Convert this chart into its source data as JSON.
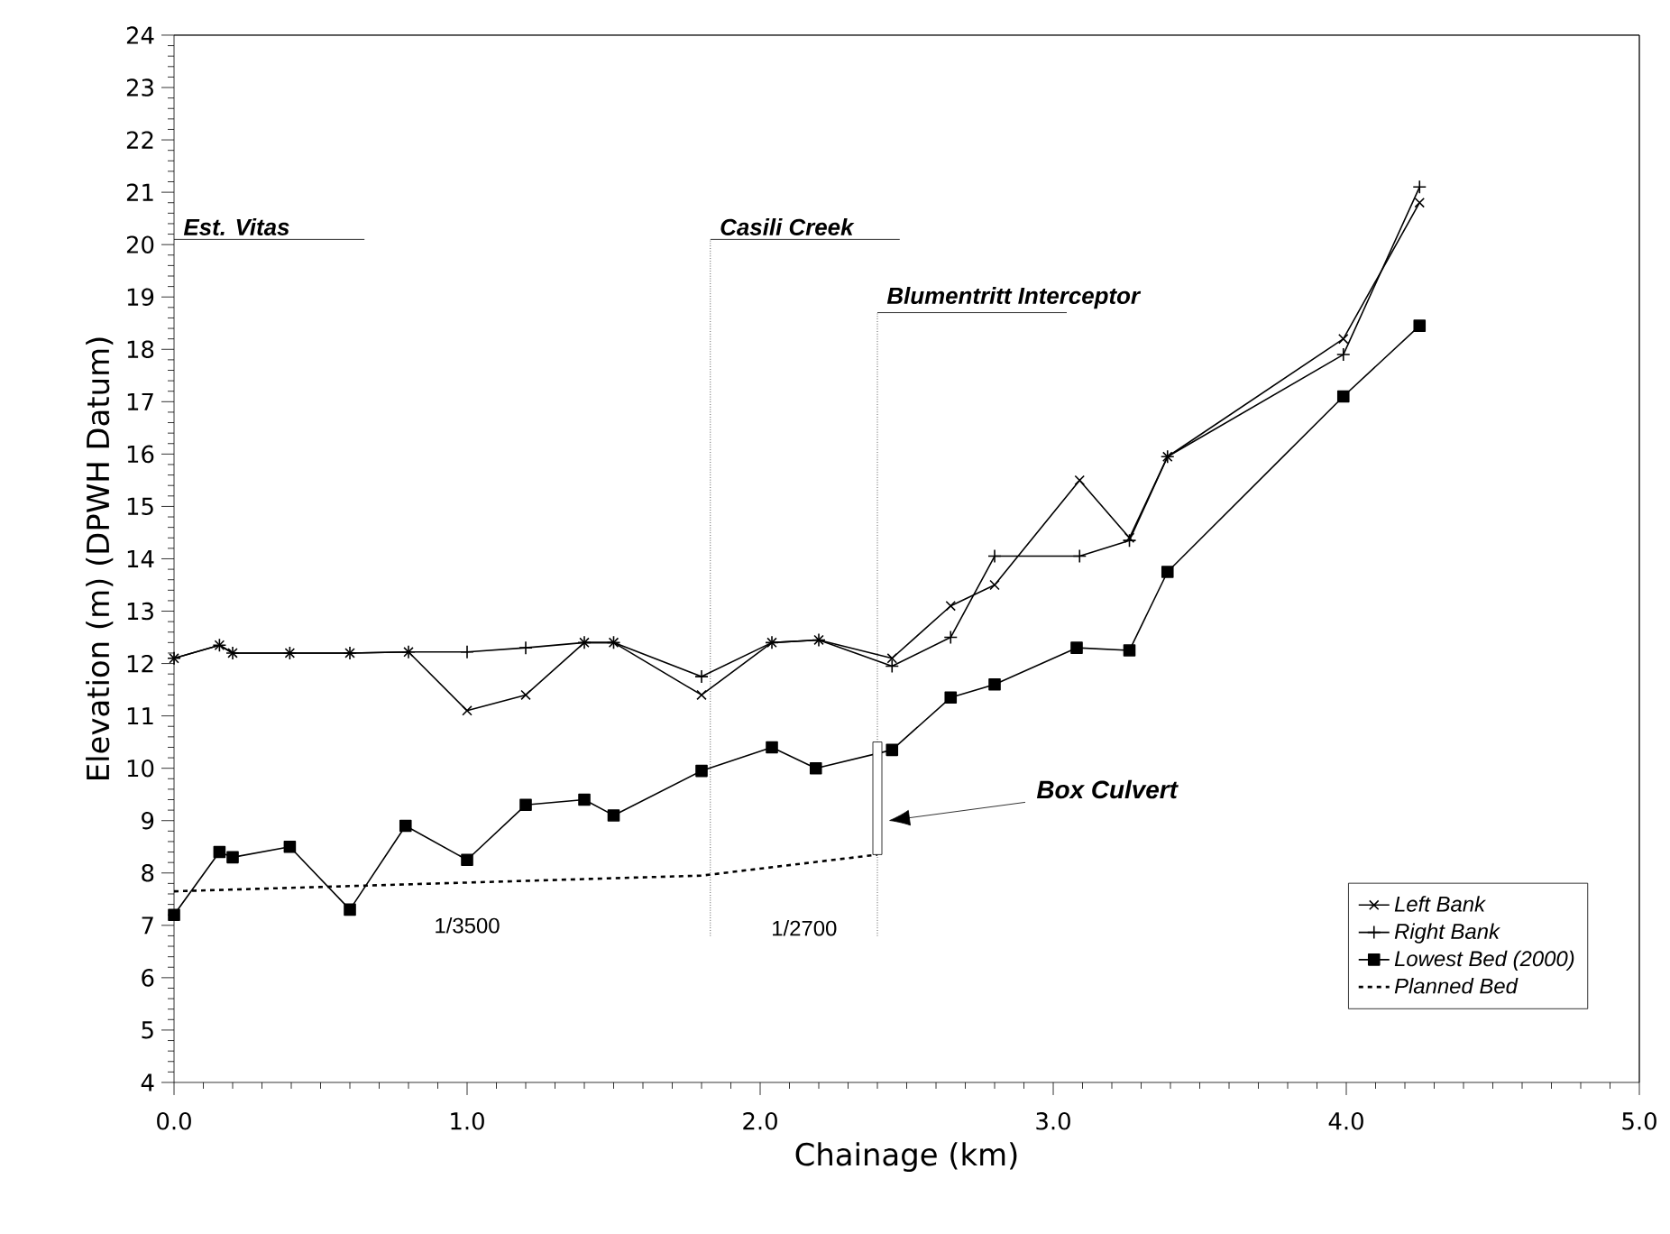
{
  "chart_data": {
    "type": "line",
    "xlabel": "Chainage (km)",
    "ylabel": "Elevation (m)  (DPWH Datum)",
    "xlim": [
      0,
      5
    ],
    "ylim": [
      4,
      24
    ],
    "xticks": [
      {
        "value": 0,
        "label": "0.0"
      },
      {
        "value": 1,
        "label": "1.0"
      },
      {
        "value": 2,
        "label": "2.0"
      },
      {
        "value": 3,
        "label": "3.0"
      },
      {
        "value": 4,
        "label": "4.0"
      },
      {
        "value": 5,
        "label": "5.0"
      }
    ],
    "yticks": [
      4,
      5,
      6,
      7,
      8,
      9,
      10,
      11,
      12,
      13,
      14,
      15,
      16,
      17,
      18,
      19,
      20,
      21,
      22,
      23,
      24
    ],
    "legend": "bottom right",
    "series": [
      {
        "name": "Left Bank",
        "color": "#000000",
        "marker": "cross",
        "x": [
          0,
          0.155,
          0.2,
          0.395,
          0.6,
          0.8,
          1.0,
          1.2,
          1.4,
          1.5,
          1.8,
          2.04,
          2.2,
          2.45,
          2.65,
          2.8,
          3.09,
          3.26,
          3.39,
          3.99,
          4.25
        ],
        "values": [
          12.1,
          12.35,
          12.2,
          12.2,
          12.2,
          12.22,
          11.1,
          11.4,
          12.4,
          12.4,
          11.4,
          12.4,
          12.45,
          12.1,
          13.1,
          13.5,
          15.5,
          14.4,
          15.95,
          18.2,
          20.8
        ]
      },
      {
        "name": "Right Bank",
        "color": "#000000",
        "marker": "plus",
        "x": [
          0,
          0.155,
          0.2,
          0.395,
          0.6,
          0.8,
          1.0,
          1.2,
          1.4,
          1.5,
          1.8,
          2.04,
          2.2,
          2.45,
          2.65,
          2.8,
          3.09,
          3.26,
          3.39,
          3.99,
          4.25
        ],
        "values": [
          12.1,
          12.35,
          12.2,
          12.2,
          12.2,
          12.22,
          12.22,
          12.3,
          12.4,
          12.4,
          11.75,
          12.4,
          12.45,
          11.95,
          12.5,
          14.05,
          14.05,
          14.35,
          15.95,
          17.9,
          21.1
        ]
      },
      {
        "name": "Lowest Bed (2000)",
        "color": "#000000",
        "marker": "square",
        "x": [
          0,
          0.155,
          0.2,
          0.395,
          0.6,
          0.79,
          1.0,
          1.2,
          1.4,
          1.5,
          1.8,
          2.04,
          2.19,
          2.45,
          2.65,
          2.8,
          3.08,
          3.26,
          3.39,
          3.99,
          4.25
        ],
        "values": [
          7.2,
          8.4,
          8.3,
          8.5,
          7.3,
          8.9,
          8.25,
          9.3,
          9.4,
          9.1,
          9.95,
          10.4,
          10.0,
          10.35,
          11.35,
          11.6,
          12.3,
          12.25,
          13.75,
          17.1,
          18.45
        ]
      },
      {
        "name": "Planned Bed",
        "color": "#000000",
        "marker": "none",
        "line_style": "dotted",
        "x": [
          0,
          1.8,
          2.4
        ],
        "values": [
          7.65,
          7.95,
          8.35
        ]
      }
    ],
    "ref_lines": [
      {
        "axis": "x",
        "value": 1.83,
        "label": "Casili Creek",
        "line_style": "dotted"
      },
      {
        "axis": "x",
        "value": 2.4,
        "label": "Blumentritt Interceptor",
        "line_style": "dotted"
      }
    ],
    "annotations": [
      "Est. Vitas",
      "Box Culvert",
      "1/3500",
      "1/2700"
    ]
  }
}
